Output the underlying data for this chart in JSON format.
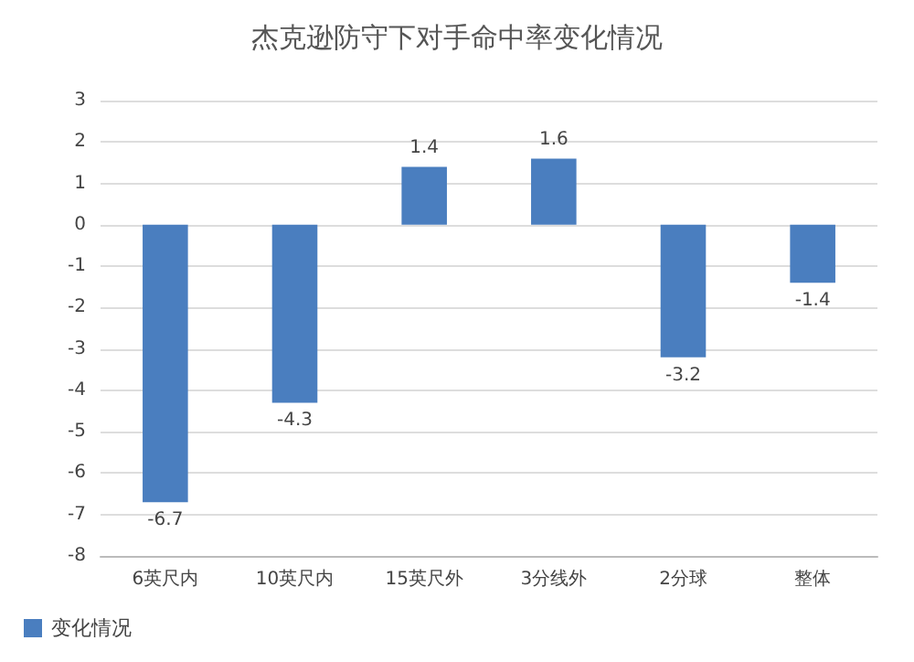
{
  "chart_data": {
    "type": "bar",
    "title": "杰克逊防守下对手命中率变化情况",
    "categories": [
      "6英尺内",
      "10英尺内",
      "15英尺外",
      "3分线外",
      "2分球",
      "整体"
    ],
    "series": [
      {
        "name": "变化情况",
        "color": "#4a7ebf",
        "values": [
          -6.7,
          -4.3,
          1.4,
          1.6,
          -3.2,
          -1.4
        ]
      }
    ],
    "ylim": [
      -8,
      3
    ],
    "yticks": [
      -8,
      -7,
      -6,
      -5,
      -4,
      -3,
      -2,
      -1,
      0,
      1,
      2,
      3
    ],
    "grid": "y",
    "data_labels": true,
    "legend": "bottom left"
  }
}
